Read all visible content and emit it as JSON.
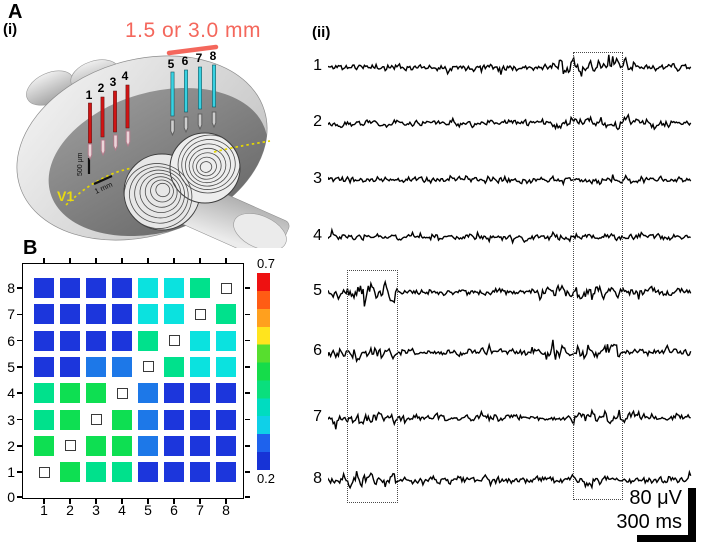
{
  "panelA": {
    "label": "A",
    "sub_label": "(i)",
    "distance_label": "1.5 or 3.0 mm",
    "distance_color": "#f4675c",
    "region_label": "V1",
    "region_label_color": "#e9da10",
    "scale_labels": {
      "depth": "500 μm",
      "spacing": "1 mm"
    },
    "red_electrodes": {
      "color": "#d01515",
      "labels": [
        "1",
        "2",
        "3",
        "4"
      ]
    },
    "cyan_electrodes": {
      "color": "#38d2e2",
      "labels": [
        "5",
        "6",
        "7",
        "8"
      ]
    }
  },
  "panelB": {
    "label": "B",
    "x_axis_labels": [
      "1",
      "2",
      "3",
      "4",
      "5",
      "6",
      "7",
      "8"
    ],
    "y_axis_labels": [
      "8",
      "7",
      "6",
      "5",
      "4",
      "3",
      "2",
      "1",
      "0"
    ],
    "colorbar_max": "0.7",
    "colorbar_min": "0.2",
    "colorbar_colors_bottom_to_top": [
      "#1733d6",
      "#1e62ed",
      "#0fd0e8",
      "#00dcc0",
      "#0adf7d",
      "#15dc4a",
      "#57de2e",
      "#ffe41e",
      "#ffa01e",
      "#ff5c14",
      "#ee1111"
    ],
    "palette": {
      "b": "#1c36dc",
      "lb": "#1d78e8",
      "c": "#0be2df",
      "sg": "#00e18c",
      "g": "#0edf52"
    },
    "chart_data": {
      "type": "heatmap",
      "title": "Pairwise correlation matrix between electrodes 1-8",
      "x_categories": [
        "1",
        "2",
        "3",
        "4",
        "5",
        "6",
        "7",
        "8"
      ],
      "y_categories": [
        "1",
        "2",
        "3",
        "4",
        "5",
        "6",
        "7",
        "8"
      ],
      "value_range": [
        0.2,
        0.7
      ],
      "color_code_values": {
        "b": 0.24,
        "lb": 0.3,
        "c": 0.37,
        "sg": 0.44,
        "g": 0.48,
        "diag": null
      },
      "diagonal_note": "diagonal self-pairs drawn as small open squares",
      "rows_top_to_bottom": [
        {
          "y": "8",
          "codes": [
            "b",
            "b",
            "b",
            "b",
            "c",
            "c",
            "sg",
            "diag"
          ]
        },
        {
          "y": "7",
          "codes": [
            "b",
            "b",
            "b",
            "b",
            "c",
            "c",
            "diag",
            "sg"
          ]
        },
        {
          "y": "6",
          "codes": [
            "b",
            "b",
            "b",
            "b",
            "sg",
            "diag",
            "c",
            "c"
          ]
        },
        {
          "y": "5",
          "codes": [
            "b",
            "b",
            "lb",
            "lb",
            "diag",
            "sg",
            "c",
            "c"
          ]
        },
        {
          "y": "4",
          "codes": [
            "sg",
            "g",
            "g",
            "diag",
            "lb",
            "b",
            "b",
            "b"
          ]
        },
        {
          "y": "3",
          "codes": [
            "sg",
            "g",
            "diag",
            "g",
            "lb",
            "b",
            "b",
            "b"
          ]
        },
        {
          "y": "2",
          "codes": [
            "g",
            "diag",
            "g",
            "g",
            "lb",
            "b",
            "b",
            "b"
          ]
        },
        {
          "y": "1",
          "codes": [
            "diag",
            "g",
            "sg",
            "sg",
            "b",
            "b",
            "b",
            "b"
          ]
        }
      ]
    }
  },
  "panelii": {
    "label": "(ii)",
    "traces": [
      {
        "label": "1",
        "noise_seed": 11,
        "bursts": [
          [
            0.63,
            0.84,
            2.1
          ]
        ]
      },
      {
        "label": "2",
        "noise_seed": 22,
        "bursts": [
          [
            0.6,
            0.85,
            1.5
          ]
        ]
      },
      {
        "label": "3",
        "noise_seed": 33,
        "bursts": [
          [
            0.62,
            0.76,
            1.25
          ]
        ]
      },
      {
        "label": "4",
        "noise_seed": 44,
        "bursts": []
      },
      {
        "label": "5",
        "noise_seed": 55,
        "bursts": [
          [
            0.01,
            0.19,
            2.1
          ],
          [
            0.58,
            0.8,
            1.9
          ]
        ]
      },
      {
        "label": "6",
        "noise_seed": 66,
        "bursts": [
          [
            0.01,
            0.18,
            1.7
          ],
          [
            0.6,
            0.8,
            1.9
          ]
        ]
      },
      {
        "label": "7",
        "noise_seed": 77,
        "bursts": [
          [
            0.01,
            0.2,
            1.6
          ],
          [
            0.66,
            0.86,
            1.8
          ]
        ]
      },
      {
        "label": "8",
        "noise_seed": 88,
        "bursts": [
          [
            0.01,
            0.19,
            1.9
          ],
          [
            0.58,
            0.78,
            1.45
          ]
        ]
      }
    ],
    "scale_bar": {
      "voltage": "80 μV",
      "time": "300 ms"
    }
  }
}
